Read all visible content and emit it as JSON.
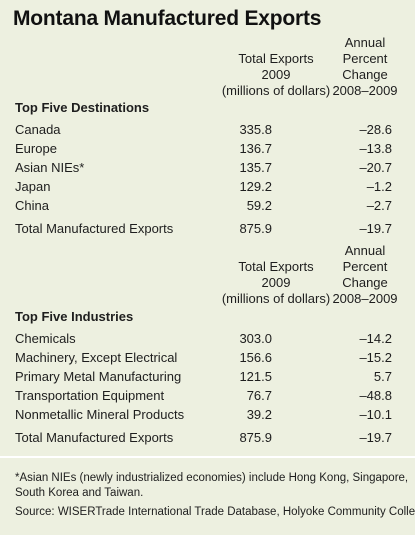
{
  "title": "Montana Manufactured Exports",
  "headers": {
    "col1": [
      "Total Exports",
      "2009",
      "(millions of dollars)"
    ],
    "col2": [
      "Annual",
      "Percent",
      "Change",
      "2008–2009"
    ]
  },
  "destinations": {
    "heading": "Top Five Destinations",
    "rows": [
      {
        "label": "Canada",
        "value": "335.8",
        "change": "–28.6"
      },
      {
        "label": "Europe",
        "value": "136.7",
        "change": "–13.8"
      },
      {
        "label": "Asian NIEs*",
        "value": "135.7",
        "change": "–20.7"
      },
      {
        "label": "Japan",
        "value": "129.2",
        "change": "–1.2"
      },
      {
        "label": "China",
        "value": "59.2",
        "change": "–2.7"
      }
    ],
    "total": {
      "label": "Total Manufactured Exports",
      "value": "875.9",
      "change": "–19.7"
    }
  },
  "industries": {
    "heading": "Top Five Industries",
    "rows": [
      {
        "label": "Chemicals",
        "value": "303.0",
        "change": "–14.2"
      },
      {
        "label": "Machinery, Except Electrical",
        "value": "156.6",
        "change": "–15.2"
      },
      {
        "label": "Primary Metal Manufacturing",
        "value": "121.5",
        "change": "5.7"
      },
      {
        "label": "Transportation Equipment",
        "value": "76.7",
        "change": "–48.8"
      },
      {
        "label": "Nonmetallic Mineral Products",
        "value": "39.2",
        "change": "–10.1"
      }
    ],
    "total": {
      "label": "Total Manufactured Exports",
      "value": "875.9",
      "change": "–19.7"
    }
  },
  "footnote": [
    "*Asian NIEs (newly industrialized economies) include Hong Kong, Singapore,",
    "South Korea and Taiwan."
  ],
  "source": "Source: WISERTrade International Trade Database, Holyoke Community College",
  "colors": {
    "background": "#edf0e0",
    "text": "#1e1e1e"
  }
}
